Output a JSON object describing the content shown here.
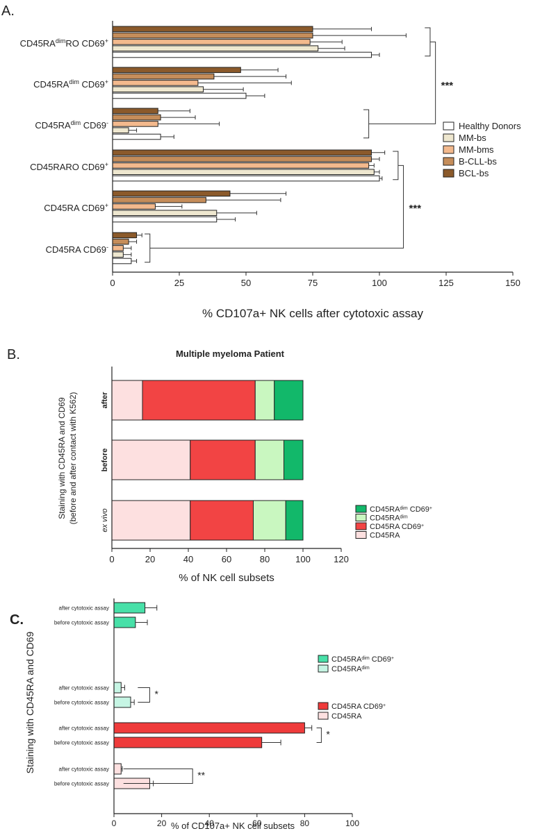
{
  "chart_data": [
    {
      "panel_label": "A.",
      "type": "bar",
      "orientation": "horizontal",
      "xlabel": "% CD107a+ NK cells after cytotoxic assay",
      "xlim": [
        0,
        150
      ],
      "xticks": [
        "0",
        "25",
        "50",
        "75",
        "100",
        "125",
        "150"
      ],
      "categories": [
        {
          "main": "CD45RA",
          "sup1": "dim",
          "mid": "RO CD69",
          "sup2": "+"
        },
        {
          "main": "CD45RA",
          "sup1": "dim",
          "mid": " CD69",
          "sup2": "+"
        },
        {
          "main": "CD45RA",
          "sup1": "dim",
          "mid": " CD69",
          "sup2": "-"
        },
        {
          "main": "CD45RARO CD69",
          "sup1": "",
          "mid": "",
          "sup2": "+"
        },
        {
          "main": "CD45RA CD69",
          "sup1": "",
          "mid": "",
          "sup2": "+"
        },
        {
          "main": "CD45RA CD69",
          "sup1": "",
          "mid": "",
          "sup2": "-"
        }
      ],
      "legend": [
        "Healthy Donors",
        "MM-bs",
        "MM-bms",
        "B-CLL-bs",
        "BCL-bs"
      ],
      "series": [
        {
          "name": "BCL-bs",
          "color": "#8b5a2b",
          "values": [
            75,
            48,
            17,
            97,
            44,
            9
          ],
          "errors": [
            22,
            14,
            12,
            5,
            21,
            2
          ]
        },
        {
          "name": "B-CLL-bs",
          "color": "#c58d5a",
          "values": [
            75,
            38,
            18,
            97,
            35,
            6
          ],
          "errors": [
            35,
            27,
            13,
            3,
            28,
            3
          ]
        },
        {
          "name": "MM-bms",
          "color": "#f3b98d",
          "values": [
            74,
            32,
            17,
            96,
            16,
            4
          ],
          "errors": [
            12,
            35,
            23,
            2,
            10,
            3
          ]
        },
        {
          "name": "MM-bs",
          "color": "#eee7cf",
          "values": [
            77,
            34,
            6,
            98,
            39,
            4
          ],
          "errors": [
            10,
            15,
            3,
            2,
            15,
            3
          ]
        },
        {
          "name": "Healthy Donors",
          "color": "#ffffff",
          "values": [
            97,
            50,
            18,
            100,
            39,
            7
          ],
          "errors": [
            3,
            7,
            5,
            1,
            7,
            2
          ]
        }
      ],
      "significance": [
        "***",
        "***"
      ]
    },
    {
      "panel_label": "B.",
      "type": "bar",
      "orientation": "horizontal-stacked",
      "title": "Multiple myeloma Patient",
      "xlabel": "% of NK cell subsets",
      "ylabel_line1": "Staining with CD45RA and CD69",
      "ylabel_line2": "(before and after contact with K562)",
      "xlim": [
        0,
        120
      ],
      "xticks": [
        "0",
        "20",
        "40",
        "60",
        "80",
        "100",
        "120"
      ],
      "categories": [
        "after",
        "before",
        "ex vivo"
      ],
      "legend": [
        {
          "main": "CD45RA",
          "sup1": "dim",
          "mid": " CD69",
          "sup2": "+"
        },
        {
          "main": "CD45RA",
          "sup1": "dim",
          "mid": "",
          "sup2": ""
        },
        {
          "main": "CD45RA CD69",
          "sup1": "",
          "mid": "",
          "sup2": "+"
        },
        {
          "main": "CD45RA",
          "sup1": "",
          "mid": "",
          "sup2": ""
        }
      ],
      "series": [
        {
          "name": "CD45RA",
          "color": "#fde0e0",
          "values": [
            16,
            41,
            41
          ]
        },
        {
          "name": "CD45RA CD69+",
          "color": "#f24444",
          "values": [
            59,
            34,
            33
          ]
        },
        {
          "name": "CD45RAdim",
          "color": "#c9f7c0",
          "values": [
            10,
            15,
            17
          ]
        },
        {
          "name": "CD45RAdim CD69+",
          "color": "#12b86a",
          "values": [
            15,
            10,
            9
          ]
        }
      ]
    },
    {
      "panel_label": "C.",
      "type": "bar",
      "orientation": "horizontal",
      "xlabel": "% of CD107a+ NK cell subsets",
      "ylabel": "Staining with CD45RA and CD69",
      "xlim": [
        0,
        100
      ],
      "xticks": [
        "0",
        "20",
        "40",
        "60",
        "80",
        "100"
      ],
      "rows": [
        {
          "label": "after cytotoxic assay",
          "value": 13,
          "error": 5,
          "color": "#48e0a8"
        },
        {
          "label": "before cytotoxic assay",
          "value": 9,
          "error": 5,
          "color": "#48e0a8"
        },
        {
          "label": "after cytotoxic assay",
          "value": 3,
          "error": 1.5,
          "color": "#c6f5e4"
        },
        {
          "label": "before cytotoxic assay",
          "value": 7,
          "error": 1.5,
          "color": "#c6f5e4"
        },
        {
          "label": "after cytotoxic assay",
          "value": 80,
          "error": 3,
          "color": "#ef3b3b"
        },
        {
          "label": "before cytotoxic assay",
          "value": 62,
          "error": 8,
          "color": "#ef3b3b"
        },
        {
          "label": "after cytotoxic assay",
          "value": 3,
          "error": 0.5,
          "color": "#fde0e0"
        },
        {
          "label": "before cytotoxic assay",
          "value": 15,
          "error": 1.5,
          "color": "#fde0e0"
        }
      ],
      "legend": [
        {
          "main": "CD45RA",
          "sup1": "dim",
          "mid": " CD69",
          "sup2": "+",
          "color": "#48e0a8"
        },
        {
          "main": "CD45RA",
          "sup1": "dim",
          "mid": "",
          "sup2": "",
          "color": "#c6f5e4"
        },
        {
          "main": "CD45RA CD69",
          "sup1": "",
          "mid": "",
          "sup2": "+",
          "color": "#ef3b3b"
        },
        {
          "main": "CD45RA",
          "sup1": "",
          "mid": "",
          "sup2": "",
          "color": "#fde0e0"
        }
      ],
      "significance": [
        "*",
        "*",
        "**"
      ]
    }
  ]
}
